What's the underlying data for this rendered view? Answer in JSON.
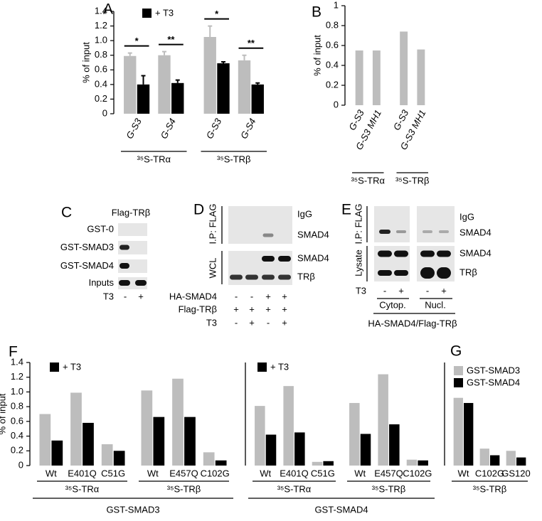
{
  "chart_data": [
    {
      "type": "bar",
      "panel": "A",
      "ylabel": "% of input",
      "ylim": [
        0,
        1.4
      ],
      "yticks": [
        0,
        0.2,
        0.4,
        0.6,
        {
          "value": 0.8,
          "label": "0.8"
        },
        {
          "value": 1,
          "label": "1.0"
        },
        1.2,
        1.4
      ],
      "categories": [
        "G-S3",
        "G-S4",
        "G-S3",
        "G-S4"
      ],
      "groups": [
        "³⁵S-TRα",
        "³⁵S-TRβ"
      ],
      "series": [
        {
          "color": "#bdbdbd",
          "values": [
            0.79,
            0.8,
            1.05,
            0.73
          ],
          "errors": [
            0.04,
            0.05,
            0.15,
            0.07
          ]
        },
        {
          "name": "+ T3",
          "color": "#000000",
          "values": [
            0.4,
            0.42,
            0.69,
            0.4
          ],
          "errors": [
            0.12,
            0.04,
            0.02,
            0.02
          ]
        }
      ],
      "significance": [
        "*",
        "**",
        "*",
        "**"
      ]
    },
    {
      "type": "bar",
      "panel": "B",
      "ylabel": "% of input",
      "ylim": [
        0,
        1
      ],
      "yticks": [
        0,
        0.2,
        0.4,
        0.6,
        0.8,
        1
      ],
      "categories": [
        "G-S3",
        "G-S3 MH1",
        "G-S3",
        "G-S3 MH1"
      ],
      "groups": [
        "³⁵S-TRα",
        "³⁵S-TRβ"
      ],
      "series": [
        {
          "color": "#bdbdbd",
          "values": [
            0.55,
            0.55,
            0.74,
            0.56
          ]
        }
      ]
    },
    {
      "type": "bar",
      "panel": "F",
      "ylabel": "% of input",
      "xlabel": "GST-SMAD3",
      "ylim": [
        0,
        1.4
      ],
      "yticks": [
        0,
        0.2,
        0.4,
        0.6,
        0.8,
        {
          "value": 1,
          "label": "1.0"
        },
        1.2,
        1.4
      ],
      "categories": [
        "Wt",
        "E401Q",
        "C51G",
        "Wt",
        "E457Q",
        "C102G"
      ],
      "groups": [
        "³⁵S-TRα",
        "³⁵S-TRβ"
      ],
      "series": [
        {
          "color": "#bdbdbd",
          "values": [
            0.7,
            0.99,
            0.29,
            1.02,
            1.18,
            0.18
          ]
        },
        {
          "name": "+ T3",
          "color": "#000000",
          "values": [
            0.34,
            0.58,
            0.2,
            0.66,
            0.66,
            0.07
          ]
        }
      ]
    },
    {
      "type": "bar",
      "xlabel": "GST-SMAD4",
      "ylim": [
        0,
        1.4
      ],
      "categories": [
        "Wt",
        "E401Q",
        "C51G",
        "Wt",
        "E457Q",
        "C102G"
      ],
      "groups": [
        "³⁵S-TRα",
        "³⁵S-TRβ"
      ],
      "series": [
        {
          "color": "#bdbdbd",
          "values": [
            0.81,
            1.08,
            0.05,
            0.85,
            1.24,
            0.08
          ]
        },
        {
          "name": "+ T3",
          "color": "#000000",
          "values": [
            0.42,
            0.45,
            0.06,
            0.43,
            0.56,
            0.07
          ]
        }
      ]
    },
    {
      "type": "bar",
      "panel": "G",
      "ylim": [
        0,
        1.4
      ],
      "categories": [
        "Wt",
        "C102G",
        "GS120"
      ],
      "groups": [
        "³⁵S-TRβ"
      ],
      "series": [
        {
          "name": "GST-SMAD3",
          "color": "#bdbdbd",
          "values": [
            0.92,
            0.23,
            0.2
          ]
        },
        {
          "name": "GST-SMAD4",
          "color": "#000000",
          "values": [
            0.85,
            0.14,
            0.11
          ]
        }
      ]
    }
  ],
  "blots": [
    {
      "panel": "C",
      "title": "Flag-TRβ",
      "rows": [
        "GST-0",
        "GST-SMAD3",
        "GST-SMAD4",
        "Inputs"
      ],
      "conditions": [
        {
          "label": "T3",
          "lanes": [
            "-",
            "+"
          ]
        }
      ]
    },
    {
      "panel": "D",
      "side_labels": [
        "I.P: FLAG",
        "WCL"
      ],
      "rows": [
        "IgG",
        "SMAD4",
        "SMAD4",
        "TRβ"
      ],
      "conditions": [
        {
          "label": "HA-SMAD4",
          "lanes": [
            "-",
            "-",
            "+",
            "+"
          ]
        },
        {
          "label": "Flag-TRβ",
          "lanes": [
            "+",
            "+",
            "+",
            "+"
          ]
        },
        {
          "label": "T3",
          "lanes": [
            "-",
            "+",
            "-",
            "+"
          ]
        }
      ]
    },
    {
      "panel": "E",
      "side_labels": [
        "I.P: FLAG",
        "Lysate"
      ],
      "rows": [
        "IgG",
        "SMAD4",
        "SMAD4",
        "TRβ"
      ],
      "conditions": [
        {
          "label": "T3",
          "lanes": [
            "-",
            "+",
            "-",
            "+"
          ]
        }
      ],
      "fractions": [
        "Cytop.",
        "Nucl."
      ],
      "construct": "HA-SMAD4/Flag-TRβ"
    }
  ]
}
